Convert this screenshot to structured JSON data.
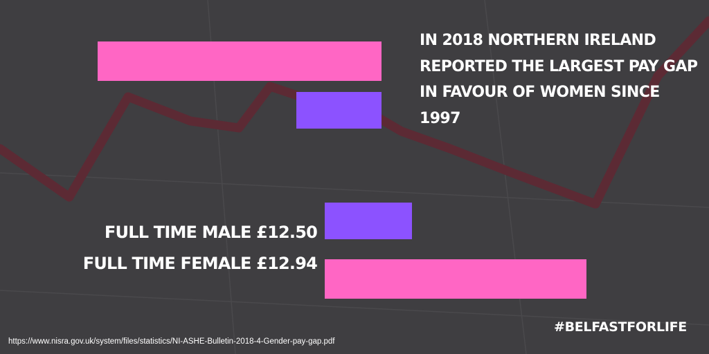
{
  "colors": {
    "background": "#3f3e41",
    "bg_line": "#5c2a34",
    "male": "#8c52ff",
    "female": "#ff66c4",
    "text": "#ffffff"
  },
  "headline": "IN 2018 NORTHERN IRELAND REPORTED THE LARGEST PAY GAP IN FAVOUR OF WOMEN SINCE 1997",
  "hashtag": "#BELFASTFORLIFE",
  "source": "https://www.nisra.gov.uk/system/files/statistics/NI-ASHE-Bulletin-2018-4-Gender-pay-gap.pdf",
  "chart_data": [
    {
      "type": "bar",
      "orientation": "horizontal",
      "direction": "right-to-left",
      "series": [
        {
          "name": "",
          "value": 1.0,
          "color": "#ff66c4"
        },
        {
          "name": "",
          "value": 0.3,
          "color": "#8c52ff"
        }
      ]
    },
    {
      "type": "bar",
      "orientation": "horizontal",
      "series": [
        {
          "name": "FULL TIME MALE £12.50",
          "value": 12.5,
          "color": "#8c52ff"
        },
        {
          "name": "FULL TIME FEMALE £12.94",
          "value": 12.94,
          "color": "#ff66c4"
        }
      ]
    }
  ]
}
